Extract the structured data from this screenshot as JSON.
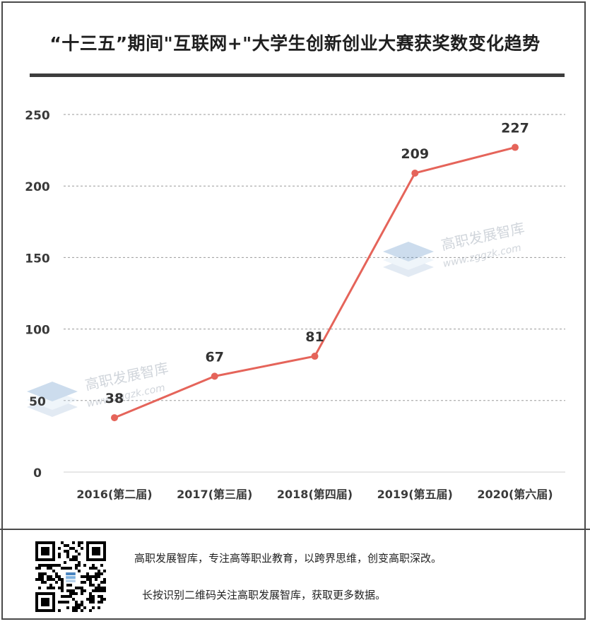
{
  "title": "“十三五”期间\"互联网+\"大学生创新创业大赛获奖数变化趋势",
  "chart_data": {
    "type": "line",
    "categories": [
      "2016(第二届)",
      "2017(第三届)",
      "2018(第四届)",
      "2019(第五届)",
      "2020(第六届)"
    ],
    "series": [
      {
        "values": [
          38,
          67,
          81,
          209,
          227
        ]
      }
    ],
    "ylim": [
      0,
      250
    ],
    "yticks": [
      0,
      50,
      100,
      150,
      200,
      250
    ],
    "grid": true,
    "data_labels": true,
    "line_color": "#e5645a"
  },
  "watermark": {
    "name": "高职发展智库",
    "url": "www.zggzk.com"
  },
  "footer": {
    "line1": "高职发展智库，专注高等职业教育，以跨界思维，创变高职深改。",
    "line2": "长按识别二维码关注高职发展智库，获取更多数据。"
  }
}
